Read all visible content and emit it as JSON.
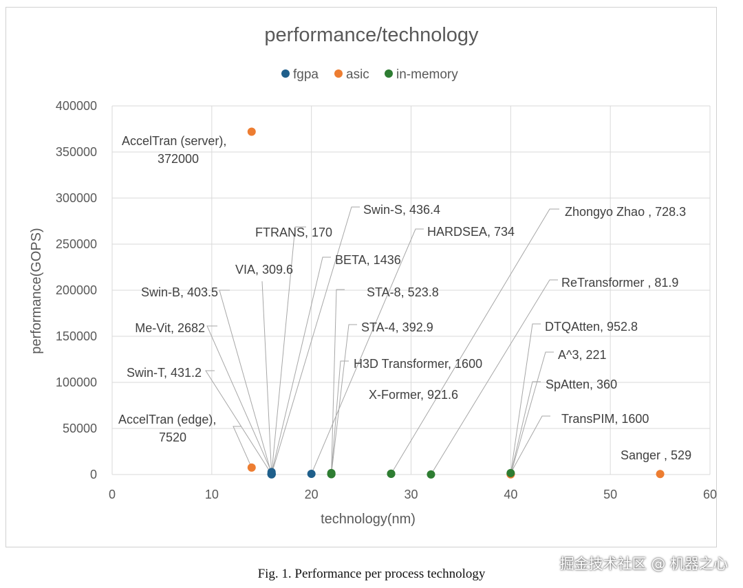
{
  "chart_data": {
    "type": "scatter",
    "title": "performance/technology",
    "xlabel": "technology(nm)",
    "ylabel": "performance(GOPS)",
    "xlim": [
      0,
      60
    ],
    "ylim": [
      0,
      400000
    ],
    "x_ticks": [
      "0",
      "10",
      "20",
      "30",
      "40",
      "50",
      "60"
    ],
    "y_ticks": [
      "0",
      "50000",
      "100000",
      "150000",
      "200000",
      "250000",
      "300000",
      "350000",
      "400000"
    ],
    "grid": true,
    "legend_position": "top",
    "series": [
      {
        "name": "fgpa",
        "color": "#1f5f8b",
        "points": [
          {
            "x": 16,
            "y": 309.6,
            "label": "VIA, 309.6"
          },
          {
            "x": 16,
            "y": 170,
            "label": "FTRANS, 170"
          },
          {
            "x": 16,
            "y": 403.5,
            "label": "Swin-B, 403.5"
          },
          {
            "x": 16,
            "y": 2682,
            "label": "Me-Vit, 2682"
          },
          {
            "x": 16,
            "y": 431.2,
            "label": "Swin-T, 431.2"
          },
          {
            "x": 16,
            "y": 436.4,
            "label": "Swin-S, 436.4"
          },
          {
            "x": 16,
            "y": 1436,
            "label": "BETA, 1436"
          },
          {
            "x": 20,
            "y": 734,
            "label": "HARDSEA, 734"
          }
        ]
      },
      {
        "name": "asic",
        "color": "#ed7d31",
        "points": [
          {
            "x": 14,
            "y": 372000,
            "label": "AccelTran (server), 372000"
          },
          {
            "x": 14,
            "y": 7520,
            "label": "AccelTran (edge), 7520"
          },
          {
            "x": 40,
            "y": 952.8,
            "label": "DTQAtten, 952.8"
          },
          {
            "x": 40,
            "y": 221,
            "label": "A^3, 221"
          },
          {
            "x": 40,
            "y": 360,
            "label": "SpAtten, 360"
          },
          {
            "x": 55,
            "y": 529,
            "label": "Sanger , 529"
          }
        ]
      },
      {
        "name": "in-memory",
        "color": "#2e7d32",
        "points": [
          {
            "x": 22,
            "y": 523.8,
            "label": "STA-8, 523.8"
          },
          {
            "x": 22,
            "y": 392.9,
            "label": "STA-4, 392.9"
          },
          {
            "x": 22,
            "y": 1600,
            "label": "H3D Transformer, 1600"
          },
          {
            "x": 28,
            "y": 921.6,
            "label": "X-Former, 921.6"
          },
          {
            "x": 28,
            "y": 728.3,
            "label": "Zhongyo Zhao , 728.3"
          },
          {
            "x": 32,
            "y": 81.9,
            "label": "ReTransformer , 81.9"
          },
          {
            "x": 40,
            "y": 1600,
            "label": "TransPIM, 1600"
          }
        ]
      }
    ]
  },
  "caption": "Fig. 1.  Performance per process technology",
  "watermark": "掘金技术社区 @ 机器之心"
}
